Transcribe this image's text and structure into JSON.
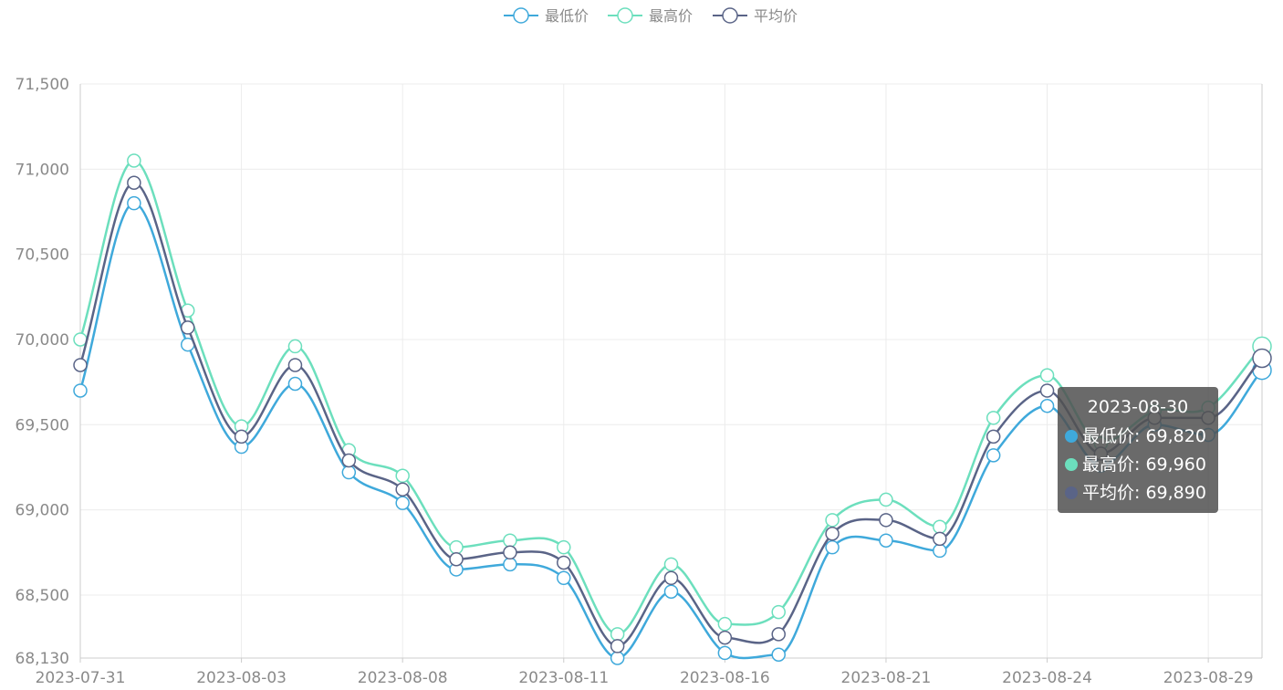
{
  "chart_data": {
    "type": "line",
    "smooth": true,
    "x": [
      "2023-07-31",
      "2023-08-01",
      "2023-08-02",
      "2023-08-03",
      "2023-08-04",
      "2023-08-07",
      "2023-08-08",
      "2023-08-09",
      "2023-08-10",
      "2023-08-11",
      "2023-08-14",
      "2023-08-15",
      "2023-08-16",
      "2023-08-17",
      "2023-08-18",
      "2023-08-21",
      "2023-08-22",
      "2023-08-23",
      "2023-08-24",
      "2023-08-25",
      "2023-08-28",
      "2023-08-29",
      "2023-08-30"
    ],
    "x_tick_labels": [
      "2023-07-31",
      "2023-08-03",
      "2023-08-08",
      "2023-08-11",
      "2023-08-16",
      "2023-08-21",
      "2023-08-24",
      "2023-08-29"
    ],
    "y_ticks": [
      68130,
      68500,
      69000,
      69500,
      70000,
      70500,
      71000,
      71500
    ],
    "y_tick_labels": [
      "68,130",
      "68,500",
      "69,000",
      "69,500",
      "70,000",
      "70,500",
      "71,000",
      "71,500"
    ],
    "ylim": [
      68130,
      71500
    ],
    "grid": true,
    "legend_position": "top-center",
    "series": [
      {
        "name": "最低价",
        "color": "#3fa9db",
        "values": [
          69700,
          70800,
          69970,
          69370,
          69740,
          69220,
          69040,
          68650,
          68680,
          68600,
          68130,
          68520,
          68160,
          68150,
          68780,
          68820,
          68760,
          69320,
          69610,
          69260,
          69500,
          69440,
          69820
        ]
      },
      {
        "name": "最高价",
        "color": "#6cdfbd",
        "values": [
          70000,
          71050,
          70170,
          69490,
          69960,
          69350,
          69200,
          68780,
          68820,
          68780,
          68270,
          68680,
          68330,
          68400,
          68940,
          69060,
          68900,
          69540,
          69790,
          69390,
          69580,
          69600,
          69960
        ]
      },
      {
        "name": "平均价",
        "color": "#5a6487",
        "values": [
          69850,
          70920,
          70070,
          69430,
          69850,
          69290,
          69120,
          68710,
          68750,
          68690,
          68200,
          68600,
          68250,
          68270,
          68860,
          68940,
          68830,
          69430,
          69700,
          69330,
          69540,
          69540,
          69890
        ]
      }
    ],
    "tooltip": {
      "title": "2023-08-30",
      "rows": [
        {
          "label": "最低价: 69,820",
          "color": "#3fa9db"
        },
        {
          "label": "最高价: 69,960",
          "color": "#6cdfbd"
        },
        {
          "label": "平均价: 69,890",
          "color": "#5a6487"
        }
      ]
    }
  }
}
